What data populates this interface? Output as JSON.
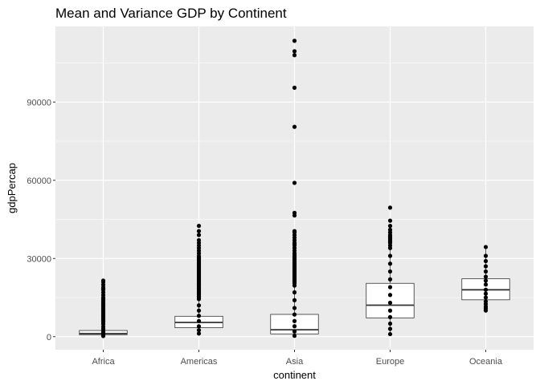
{
  "chart_data": {
    "type": "boxplot",
    "title": "Mean and Variance GDP by Continent",
    "xlabel": "continent",
    "ylabel": "gdpPercap",
    "ylim": [
      -5000,
      119000
    ],
    "yticks": [
      0,
      30000,
      60000,
      90000
    ],
    "ytick_labels": [
      "0",
      "30000",
      "60000",
      "90000"
    ],
    "grid": true,
    "colors": {
      "panel": "#ebebeb",
      "grid": "#ffffff",
      "box_outline": "#333333",
      "points": "#000000"
    },
    "categories": [
      "Africa",
      "Americas",
      "Asia",
      "Europe",
      "Oceania"
    ],
    "boxes": [
      {
        "category": "Africa",
        "whisker_low": 241,
        "q1": 761,
        "median": 1192,
        "q3": 2377,
        "whisker_high": 4801
      },
      {
        "category": "Americas",
        "whisker_low": 1202,
        "q1": 3428,
        "median": 5466,
        "q3": 7830,
        "whisker_high": 14400
      },
      {
        "category": "Asia",
        "whisker_low": 331,
        "q1": 1057,
        "median": 2647,
        "q3": 8549,
        "whisker_high": 19600
      },
      {
        "category": "Europe",
        "whisker_low": 974,
        "q1": 7213,
        "median": 12082,
        "q3": 20461,
        "whisker_high": 40000
      },
      {
        "category": "Oceania",
        "whisker_low": 10040,
        "q1": 14142,
        "median": 17983,
        "q3": 22214,
        "whisker_high": 34435
      }
    ],
    "points": [
      {
        "category": "Africa",
        "values": [
          241,
          500,
          900,
          1500,
          2200,
          3000,
          3800,
          4800,
          5500,
          6000,
          6500,
          7000,
          7500,
          8000,
          8500,
          9000,
          9500,
          10000,
          10500,
          11000,
          11500,
          12000,
          12500,
          13000,
          13500,
          14000,
          14500,
          15000,
          16000,
          17000,
          18000,
          18500,
          19000,
          20000,
          21000,
          21500
        ]
      },
      {
        "category": "Americas",
        "values": [
          1202,
          2500,
          4000,
          6000,
          8000,
          10000,
          12000,
          14400,
          15000,
          15500,
          16000,
          16500,
          17000,
          17500,
          18000,
          18500,
          19000,
          19500,
          20000,
          20500,
          21000,
          21500,
          22000,
          22500,
          23000,
          23500,
          24000,
          24500,
          25000,
          25500,
          26000,
          26500,
          27000,
          27500,
          28000,
          28500,
          29000,
          29500,
          30000,
          30500,
          31000,
          32000,
          33000,
          34000,
          35000,
          36000,
          37000,
          39000,
          40500,
          42500
        ]
      },
      {
        "category": "Asia",
        "values": [
          331,
          2000,
          4000,
          6000,
          8500,
          11000,
          14000,
          17000,
          19600,
          20500,
          21000,
          21500,
          22000,
          22500,
          23000,
          23500,
          24000,
          24500,
          25000,
          25500,
          26000,
          26500,
          27000,
          27500,
          28000,
          28500,
          29000,
          29500,
          30000,
          30500,
          31000,
          31500,
          32000,
          33000,
          34000,
          35000,
          35500,
          36000,
          37000,
          38000,
          39000,
          40000,
          40500,
          46500,
          47500,
          59000,
          80500,
          95500,
          108000,
          109500,
          113500
        ]
      },
      {
        "category": "Europe",
        "values": [
          974,
          3000,
          5000,
          7500,
          10000,
          13000,
          16000,
          19000,
          22000,
          25000,
          28000,
          31000,
          34000,
          35000,
          36000,
          36500,
          37000,
          37500,
          38000,
          38500,
          39000,
          40000,
          41000,
          42500,
          44500,
          49500
        ]
      },
      {
        "category": "Oceania",
        "values": [
          10040,
          10800,
          11500,
          12500,
          13500,
          15000,
          16500,
          18000,
          20000,
          21500,
          23000,
          25000,
          27000,
          29000,
          31000,
          34400
        ]
      }
    ]
  }
}
